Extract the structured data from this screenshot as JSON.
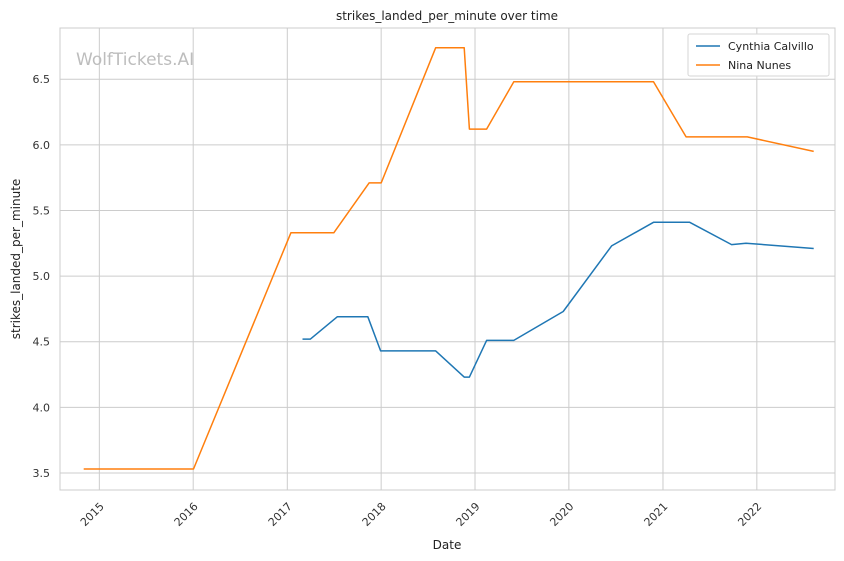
{
  "chart_data": {
    "type": "line",
    "title": "strikes_landed_per_minute over time",
    "xlabel": "Date",
    "ylabel": "strikes_landed_per_minute",
    "watermark": "WolfTickets.AI",
    "x_ticks": [
      "2015",
      "2016",
      "2017",
      "2018",
      "2019",
      "2020",
      "2021",
      "2022"
    ],
    "y_ticks": [
      "3.5",
      "4.0",
      "4.5",
      "5.0",
      "5.5",
      "6.0",
      "6.5"
    ],
    "xlim": [
      "2014-08-01",
      "2022-11-01"
    ],
    "ylim": [
      3.37,
      6.89
    ],
    "grid": true,
    "legend_position": "top-right",
    "series": [
      {
        "name": "Cynthia Calvillo",
        "color": "#1f77b4",
        "points": [
          [
            "2017-03-01",
            4.52
          ],
          [
            "2017-04-01",
            4.52
          ],
          [
            "2017-07-15",
            4.69
          ],
          [
            "2017-11-10",
            4.69
          ],
          [
            "2017-12-30",
            4.43
          ],
          [
            "2018-08-01",
            4.43
          ],
          [
            "2018-11-20",
            4.23
          ],
          [
            "2018-12-10",
            4.23
          ],
          [
            "2019-02-15",
            4.51
          ],
          [
            "2019-06-01",
            4.51
          ],
          [
            "2019-12-10",
            4.73
          ],
          [
            "2020-06-15",
            5.23
          ],
          [
            "2020-11-25",
            5.41
          ],
          [
            "2021-04-15",
            5.41
          ],
          [
            "2021-09-25",
            5.24
          ],
          [
            "2021-11-20",
            5.25
          ],
          [
            "2022-08-10",
            5.21
          ]
        ]
      },
      {
        "name": "Nina Nunes",
        "color": "#ff7f0e",
        "points": [
          [
            "2014-11-01",
            3.53
          ],
          [
            "2016-01-02",
            3.53
          ],
          [
            "2017-01-15",
            5.33
          ],
          [
            "2017-07-01",
            5.33
          ],
          [
            "2017-11-15",
            5.71
          ],
          [
            "2018-01-01",
            5.71
          ],
          [
            "2018-08-01",
            6.74
          ],
          [
            "2018-11-20",
            6.74
          ],
          [
            "2018-12-10",
            6.12
          ],
          [
            "2019-02-15",
            6.12
          ],
          [
            "2019-06-01",
            6.48
          ],
          [
            "2020-11-25",
            6.48
          ],
          [
            "2021-04-01",
            6.06
          ],
          [
            "2021-11-25",
            6.06
          ],
          [
            "2022-08-10",
            5.95
          ]
        ]
      }
    ]
  }
}
